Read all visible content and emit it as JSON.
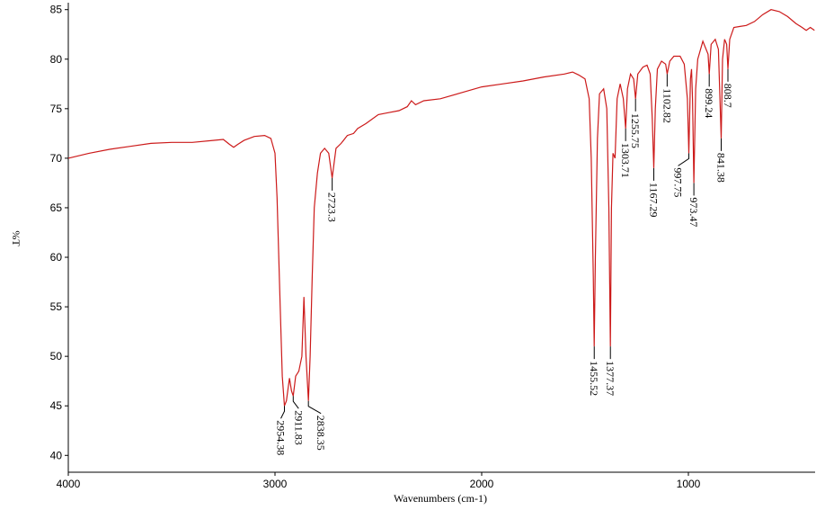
{
  "chart_data": {
    "type": "line",
    "xlabel": "Wavenumbers (cm-1)",
    "ylabel": "%T",
    "color": "#cc1a1a",
    "x": [
      4000,
      3900,
      3800,
      3700,
      3600,
      3500,
      3400,
      3300,
      3250,
      3220,
      3200,
      3180,
      3150,
      3100,
      3050,
      3020,
      3000,
      2990,
      2975,
      2965,
      2954.38,
      2945,
      2930,
      2920,
      2911.83,
      2900,
      2885,
      2870,
      2860,
      2850,
      2838.35,
      2830,
      2820,
      2810,
      2795,
      2780,
      2760,
      2740,
      2723.3,
      2705,
      2680,
      2650,
      2620,
      2600,
      2560,
      2500,
      2450,
      2400,
      2360,
      2340,
      2320,
      2280,
      2200,
      2100,
      2000,
      1900,
      1800,
      1700,
      1600,
      1560,
      1530,
      1500,
      1480,
      1470,
      1460,
      1455.52,
      1450,
      1440,
      1430,
      1410,
      1395,
      1385,
      1377.37,
      1372,
      1365,
      1355,
      1345,
      1330,
      1315,
      1303.71,
      1295,
      1280,
      1265,
      1255.75,
      1245,
      1220,
      1200,
      1185,
      1175,
      1167.29,
      1160,
      1150,
      1130,
      1110,
      1102.82,
      1090,
      1070,
      1040,
      1020,
      1005,
      997.75,
      990,
      985,
      980,
      973.47,
      965,
      955,
      930,
      905,
      899.24,
      890,
      870,
      855,
      841.38,
      835,
      825,
      815,
      808.7,
      800,
      780,
      750,
      720,
      680,
      640,
      600,
      560,
      520,
      480,
      450,
      430,
      410,
      390
    ],
    "values": [
      70.0,
      70.5,
      70.9,
      71.2,
      71.5,
      71.6,
      71.6,
      71.8,
      71.9,
      71.4,
      71.1,
      71.4,
      71.8,
      72.2,
      72.3,
      72.0,
      70.5,
      66,
      55,
      48,
      45.0,
      45.5,
      47.8,
      46.5,
      46.0,
      48,
      48.5,
      50,
      56,
      50,
      45.5,
      50,
      58,
      65,
      68.5,
      70.5,
      71,
      70.5,
      68.0,
      71,
      71.5,
      72.3,
      72.5,
      73.0,
      73.5,
      74.4,
      74.6,
      74.8,
      75.2,
      75.8,
      75.4,
      75.8,
      76.0,
      76.6,
      77.2,
      77.5,
      77.8,
      78.2,
      78.5,
      78.7,
      78.4,
      78.0,
      76,
      70,
      58,
      51.0,
      60,
      72,
      76.5,
      77.0,
      75,
      65,
      51.0,
      65,
      70.5,
      70,
      76,
      77.5,
      76,
      73.0,
      77,
      78.5,
      78,
      76,
      78.5,
      79.2,
      79.4,
      78.5,
      74,
      69.0,
      75,
      79,
      79.8,
      79.5,
      78.5,
      79.8,
      80.3,
      80.3,
      79.5,
      76,
      70.5,
      78,
      79,
      76,
      67.5,
      77,
      80,
      81.8,
      80.5,
      78.5,
      81.5,
      82,
      81,
      72.0,
      80,
      82,
      81.5,
      79.0,
      82,
      83.2,
      83.3,
      83.4,
      83.8,
      84.5,
      85.0,
      84.8,
      84.3,
      83.6,
      83.2,
      82.9,
      83.2,
      82.9
    ],
    "peaks": [
      {
        "x": 2954.38,
        "y": 45.0
      },
      {
        "x": 2911.83,
        "y": 46.0
      },
      {
        "x": 2838.35,
        "y": 45.5
      },
      {
        "x": 2723.3,
        "y": 68.0
      },
      {
        "x": 1455.52,
        "y": 51.0
      },
      {
        "x": 1377.37,
        "y": 51.0
      },
      {
        "x": 1303.71,
        "y": 73.0
      },
      {
        "x": 1255.75,
        "y": 76
      },
      {
        "x": 1167.29,
        "y": 69.0
      },
      {
        "x": 1102.82,
        "y": 78.5
      },
      {
        "x": 997.75,
        "y": 70.5
      },
      {
        "x": 973.47,
        "y": 67.5
      },
      {
        "x": 899.24,
        "y": 78.5
      },
      {
        "x": 841.38,
        "y": 72.0
      },
      {
        "x": 808.7,
        "y": 79.0
      }
    ],
    "xlim": [
      4000,
      387
    ],
    "xticks": [
      4000,
      3000,
      2000,
      1000
    ],
    "ylim": [
      38.3,
      85.7
    ],
    "yticks": [
      40,
      45,
      50,
      55,
      60,
      65,
      70,
      75,
      80,
      85
    ]
  }
}
